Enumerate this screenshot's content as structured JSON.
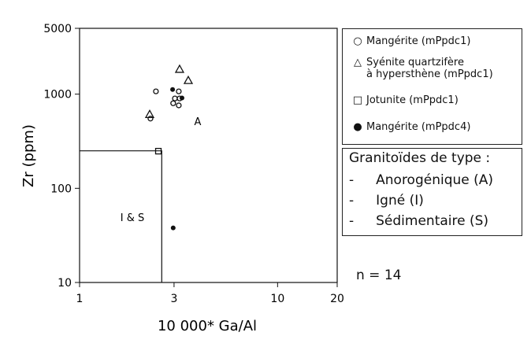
{
  "chart_data": {
    "type": "scatter",
    "xlabel": "10 000* Ga/Al",
    "ylabel": "Zr (ppm)",
    "xscale": "log",
    "yscale": "log",
    "xlim": [
      1,
      20
    ],
    "ylim": [
      10,
      5000
    ],
    "xticks": [
      "1",
      "3",
      "10",
      "20"
    ],
    "yticks": [
      "10",
      "100",
      "1000",
      "5000"
    ],
    "xtick_values": [
      1,
      3,
      10,
      20
    ],
    "ytick_values": [
      10,
      100,
      1000,
      5000
    ],
    "boundary": {
      "ga_al": 2.6,
      "zr": 250
    },
    "field_labels": {
      "A": "A",
      "IS": "I & S"
    },
    "series": [
      {
        "name": "Mangérite (mPpdc1)",
        "marker": "open-circle",
        "points": [
          [
            2.43,
            1070
          ],
          [
            3.17,
            1070
          ],
          [
            3.03,
            900
          ],
          [
            3.2,
            900
          ],
          [
            2.97,
            800
          ],
          [
            3.17,
            760
          ],
          [
            2.28,
            550
          ]
        ]
      },
      {
        "name": "Syénite quartzifère à hypersthène (mPpdc1)",
        "marker": "open-triangle",
        "points": [
          [
            3.2,
            1840
          ],
          [
            3.54,
            1400
          ],
          [
            2.26,
            610
          ]
        ]
      },
      {
        "name": "Jotunite (mPpdc1)",
        "marker": "open-square",
        "points": [
          [
            2.5,
            248
          ]
        ]
      },
      {
        "name": "Mangérite (mPpdc4)",
        "marker": "filled-circle",
        "points": [
          [
            2.95,
            1120
          ],
          [
            3.29,
            910
          ],
          [
            2.97,
            38
          ]
        ]
      }
    ],
    "legend": {
      "placement": "right",
      "items": [
        "Mangérite (mPpdc1)",
        "Syénite quartzifère",
        "à hypersthène (mPpdc1)",
        "Jotunite (mPpdc1)",
        "Mangérite (mPpdc4)"
      ]
    },
    "types_box": {
      "title": "Granitoïdes de type :",
      "items": [
        "Anorogénique (A)",
        "Igné (I)",
        "Sédimentaire (S)"
      ],
      "dash": "-"
    },
    "n_label": "n = 14"
  }
}
